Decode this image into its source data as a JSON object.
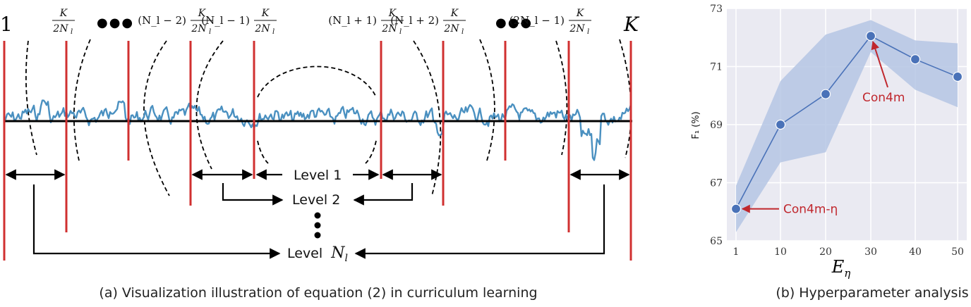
{
  "panel_a": {
    "caption": "(a) Visualization illustration of equation (2) in curriculum learning",
    "left_label": "1",
    "right_label": "K",
    "dots": "●●●",
    "vdots": "⋮",
    "marker_labels": [
      {
        "coef": "",
        "num": "K",
        "den": "2N",
        "den_sub": "l"
      },
      {
        "coef": "(N_l − 2)",
        "num": "K",
        "den": "2N",
        "den_sub": "l"
      },
      {
        "coef": "(N_l − 1)",
        "num": "K",
        "den": "2N",
        "den_sub": "l"
      },
      {
        "coef": "(N_l + 1)",
        "num": "K",
        "den": "2N",
        "den_sub": "l"
      },
      {
        "coef": "(N_l + 2)",
        "num": "K",
        "den": "2N",
        "den_sub": "l"
      },
      {
        "coef": "(2N_l − 1)",
        "num": "K",
        "den": "2N",
        "den_sub": "l"
      }
    ],
    "levels": {
      "level1": "Level 1",
      "level2": "Level 2",
      "levelN_prefix": "Level",
      "levelN_var": "N",
      "levelN_sub": "l"
    },
    "colors": {
      "signal": "#4a90c0",
      "marker": "#d03030",
      "axis": "#000000"
    }
  },
  "panel_b": {
    "caption": "(b) Hyperparameter analysis",
    "chart_data": {
      "type": "line",
      "x": [
        1,
        10,
        20,
        30,
        40,
        50
      ],
      "x_ticks": [
        "1",
        "10",
        "20",
        "30",
        "40",
        "50"
      ],
      "series": [
        {
          "values": [
            66.1,
            69.0,
            70.05,
            72.05,
            71.25,
            70.65
          ],
          "band_upper": [
            66.9,
            70.5,
            72.1,
            72.6,
            71.9,
            71.8
          ],
          "band_lower": [
            65.3,
            67.7,
            68.05,
            71.5,
            70.2,
            69.6
          ]
        }
      ],
      "xlabel": "E",
      "xlabel_sub": "η",
      "ylabel": "F₁ (%)",
      "ylim": [
        65,
        73
      ],
      "y_ticks": [
        65,
        67,
        69,
        71,
        73
      ],
      "grid": true,
      "annotations": [
        {
          "text": "Con4m",
          "x": 30,
          "y": 72.05
        },
        {
          "text": "Con4m-η",
          "x": 1,
          "y": 66.1
        }
      ],
      "colors": {
        "line": "#4a72b8",
        "band": "#b5c5e4",
        "annotation": "#c0272d",
        "background": "#eaeaf2"
      }
    }
  }
}
